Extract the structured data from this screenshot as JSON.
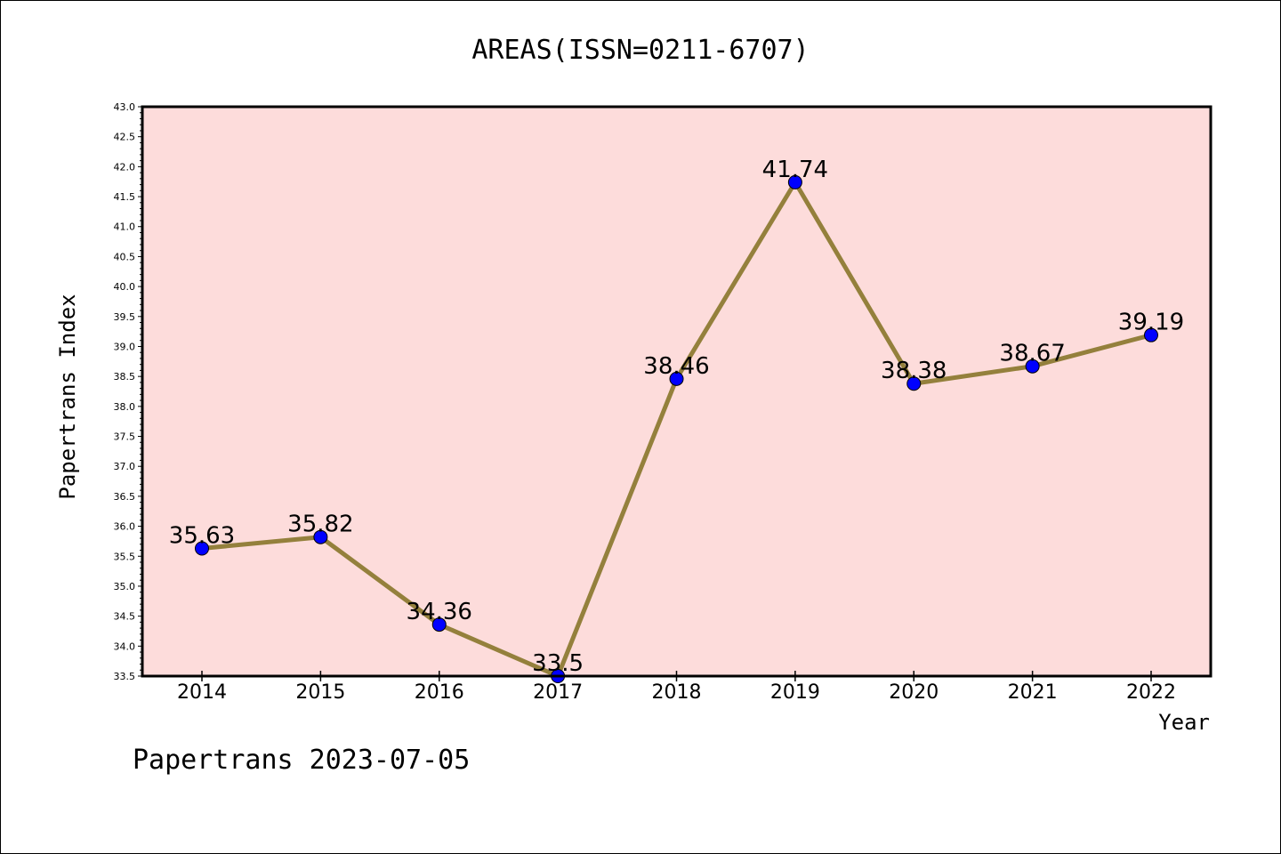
{
  "chart_data": {
    "type": "line",
    "title": "AREAS(ISSN=0211-6707)",
    "xlabel": "Year",
    "ylabel": "Papertrans Index",
    "categories": [
      "2014",
      "2015",
      "2016",
      "2017",
      "2018",
      "2019",
      "2020",
      "2021",
      "2022"
    ],
    "values": [
      35.63,
      35.82,
      34.36,
      33.5,
      38.46,
      41.74,
      38.38,
      38.67,
      39.19
    ],
    "data_labels": [
      "35.63",
      "35.82",
      "34.36",
      "33.5",
      "38.46",
      "41.74",
      "38.38",
      "38.67",
      "39.19"
    ],
    "ylim": [
      33.5,
      43.0
    ],
    "yticks": [
      "33.5",
      "34.0",
      "34.5",
      "35.0",
      "35.5",
      "36.0",
      "36.5",
      "37.0",
      "37.5",
      "38.0",
      "38.5",
      "39.0",
      "39.5",
      "40.0",
      "40.5",
      "41.0",
      "41.5",
      "42.0",
      "42.5",
      "43.0"
    ],
    "grid": false,
    "plot_background": "#fddcdb",
    "line_color": "#94803c",
    "marker_color": "#0000ff"
  },
  "footer": "Papertrans 2023-07-05"
}
